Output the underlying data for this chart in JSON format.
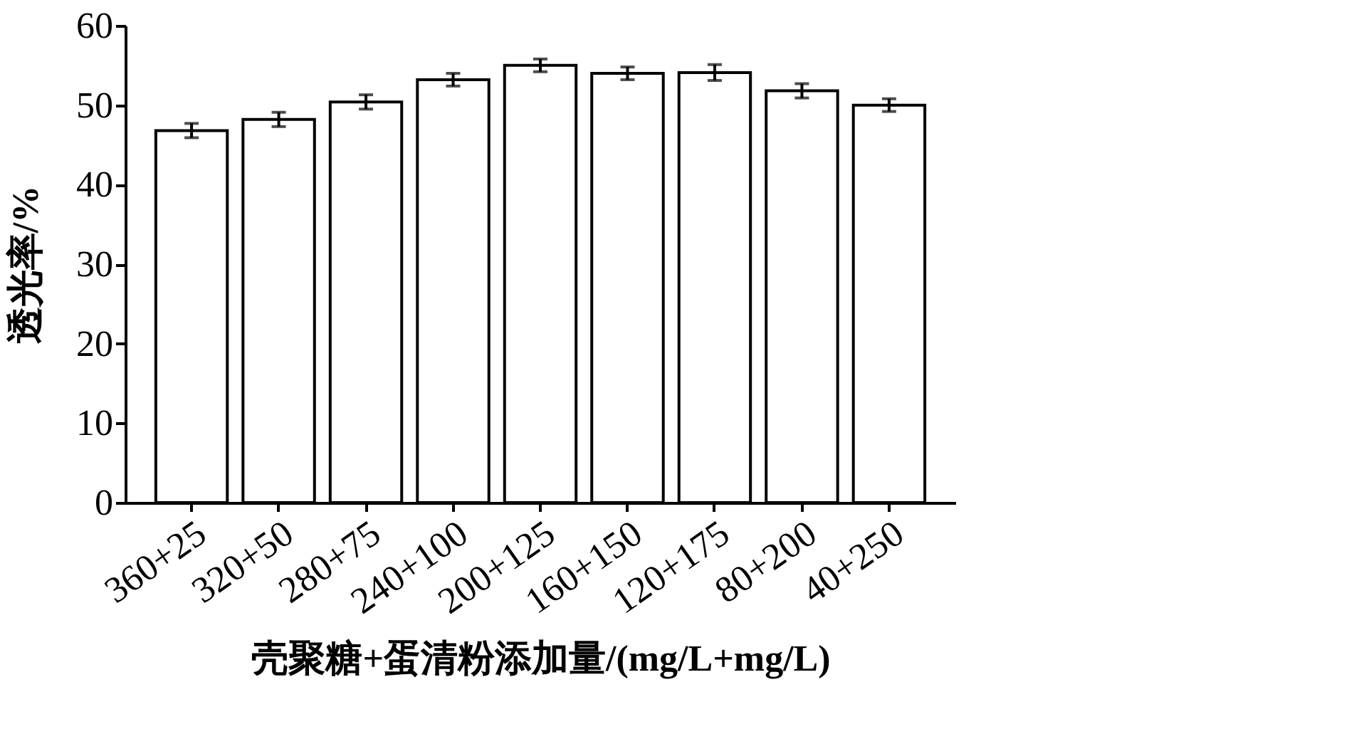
{
  "chart_data": {
    "type": "bar",
    "xlabel": "壳聚糖+蛋清粉添加量/(mg/L+mg/L)",
    "ylabel": "透光率/%",
    "categories": [
      "360+25",
      "320+50",
      "280+75",
      "240+100",
      "200+125",
      "160+150",
      "120+175",
      "80+200",
      "40+250"
    ],
    "values": [
      46.8,
      48.2,
      50.4,
      53.2,
      55.0,
      54.0,
      54.1,
      51.8,
      50.0
    ],
    "errors": [
      0.9,
      0.9,
      0.9,
      0.8,
      0.8,
      0.8,
      1.0,
      0.9,
      0.8
    ],
    "color": "#ffffff",
    "ylim": [
      0,
      60
    ],
    "yticks": [
      0,
      10,
      20,
      30,
      40,
      50,
      60
    ],
    "grid": false
  }
}
